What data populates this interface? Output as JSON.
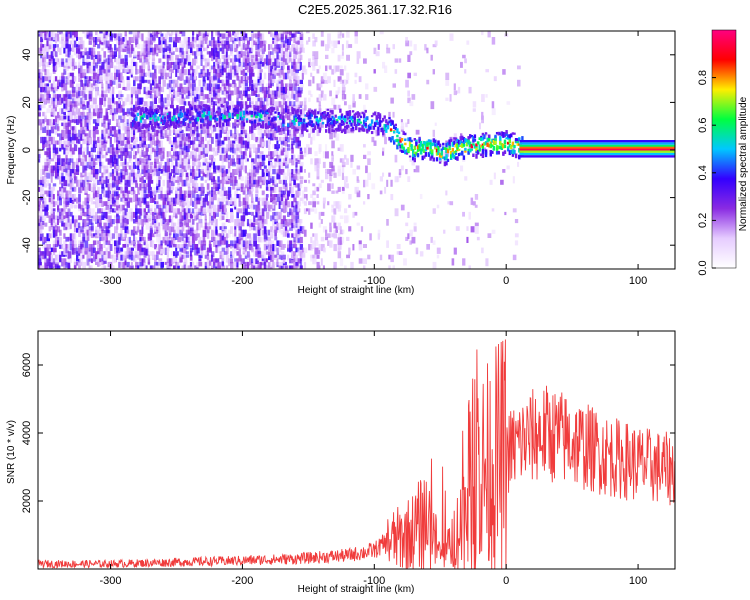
{
  "title": "C2E5.2025.361.17.32.R16",
  "chart_data": [
    {
      "type": "heatmap",
      "xlabel": "Height of straight line (km)",
      "ylabel": "Frequency (Hz)",
      "xlim": [
        -355,
        128
      ],
      "ylim": [
        -50,
        50
      ],
      "xticks": [
        -300,
        -200,
        -100,
        0,
        100
      ],
      "yticks": [
        -40,
        -20,
        0,
        20,
        40
      ],
      "colorbar": {
        "label": "Normalized spectral amplitude",
        "range": [
          0,
          1
        ],
        "ticks": [
          "0.0",
          "0.2",
          "0.4",
          "0.6",
          "0.8"
        ],
        "colormap": [
          "#ffffff",
          "#e6ccff",
          "#8a2be2",
          "#3300ff",
          "#00c8ff",
          "#00ff40",
          "#ffee00",
          "#ff0000",
          "#ff0080"
        ]
      },
      "ridge": {
        "x": [
          -280,
          -240,
          -200,
          -160,
          -150,
          -120,
          -100,
          -90,
          -80,
          -70,
          -60,
          -50,
          -40,
          -30,
          -20,
          -10,
          0,
          10,
          128
        ],
        "y": [
          13,
          14,
          14,
          12,
          12,
          12,
          11,
          9,
          3,
          0,
          1,
          -2,
          0,
          1,
          2,
          2,
          3,
          1,
          0
        ]
      }
    },
    {
      "type": "line",
      "xlabel": "Height of straight line (km)",
      "ylabel": "SNR (10 * v/v)",
      "xlim": [
        -355,
        128
      ],
      "ylim": [
        0,
        7000
      ],
      "xticks": [
        -300,
        -200,
        -100,
        0,
        100
      ],
      "yticks": [
        2000,
        4000,
        6000
      ],
      "color": "#f03c3c",
      "x": [
        -355,
        -300,
        -250,
        -200,
        -160,
        -140,
        -120,
        -100,
        -90,
        -80,
        -70,
        -60,
        -55,
        -50,
        -45,
        -40,
        -35,
        -30,
        -25,
        -20,
        -15,
        -10,
        0,
        10,
        20,
        30,
        40,
        60,
        80,
        100,
        128
      ],
      "y": [
        150,
        150,
        200,
        250,
        300,
        350,
        400,
        550,
        800,
        900,
        1100,
        1500,
        1000,
        400,
        500,
        900,
        1300,
        1800,
        2600,
        2800,
        2900,
        3100,
        3400,
        3700,
        3900,
        4000,
        3900,
        3600,
        3300,
        3100,
        2900
      ]
    }
  ]
}
